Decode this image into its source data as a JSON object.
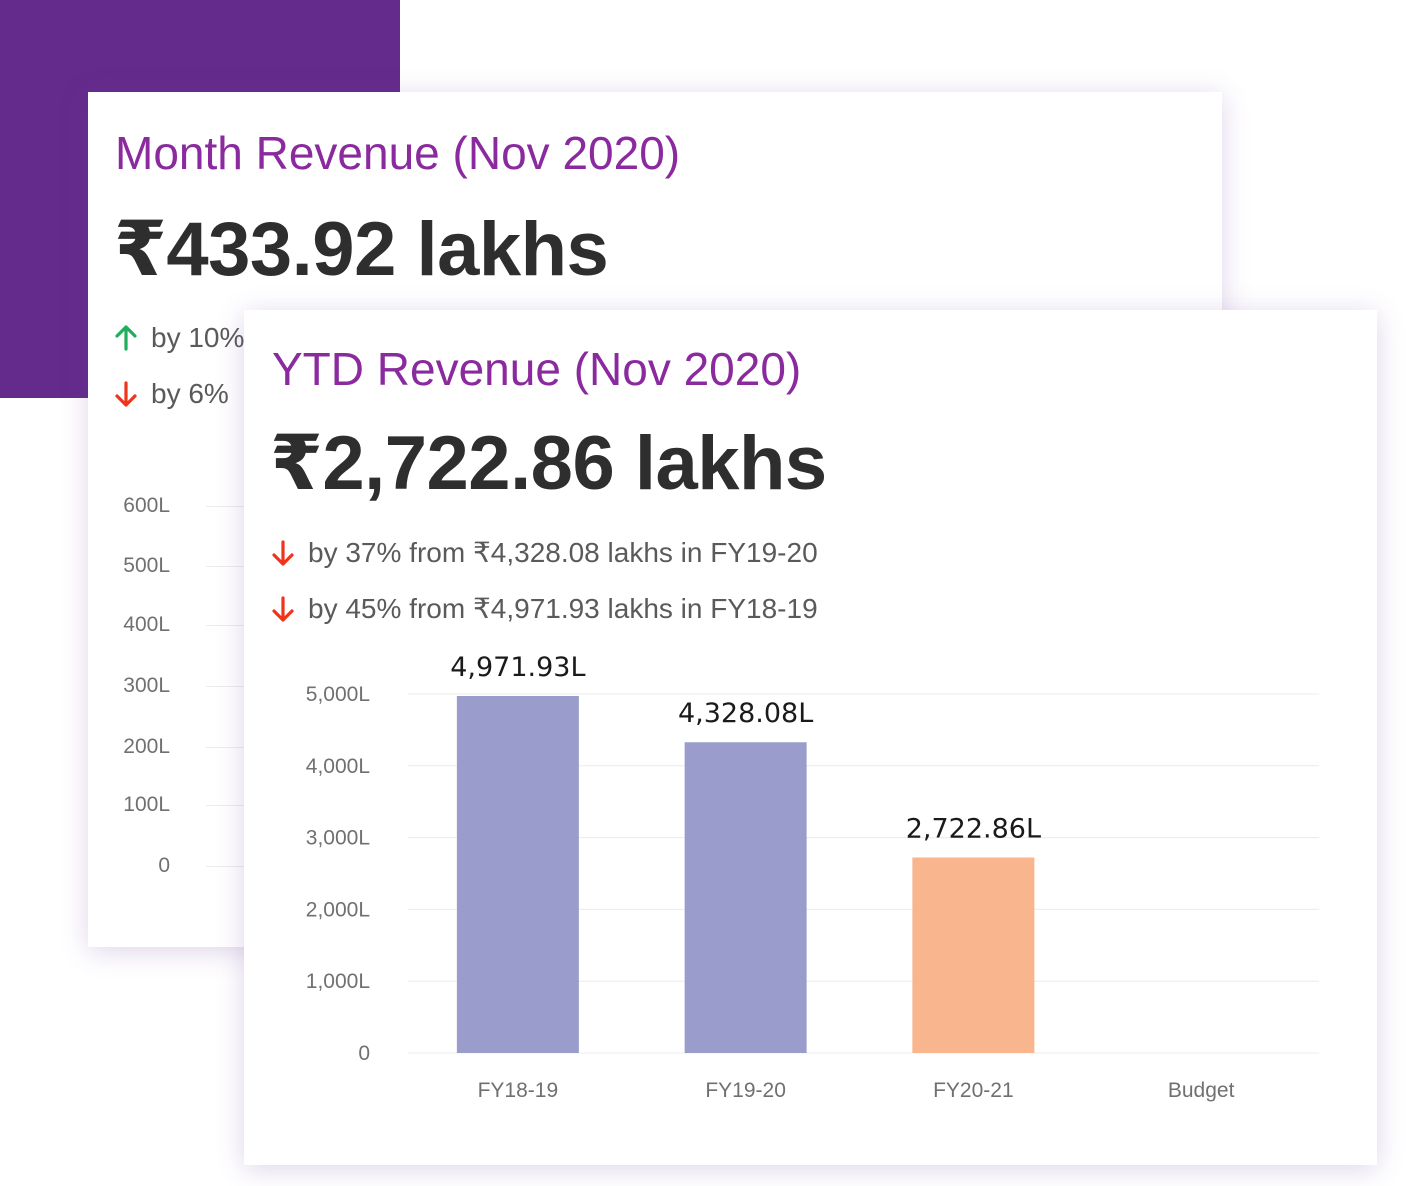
{
  "month_card": {
    "title": "Month Revenue (Nov 2020)",
    "amount": "₹433.92 lakhs",
    "changes": [
      {
        "direction": "up",
        "text": "by 10%"
      },
      {
        "direction": "down",
        "text": "by 6%"
      }
    ],
    "y_ticks": [
      "600L",
      "500L",
      "400L",
      "300L",
      "200L",
      "100L",
      "0"
    ]
  },
  "ytd_card": {
    "title": "YTD Revenue (Nov 2020)",
    "amount": "₹2,722.86 lakhs",
    "changes": [
      {
        "direction": "down",
        "text": "by 37% from ₹4,328.08 lakhs in FY19-20"
      },
      {
        "direction": "down",
        "text": "by 45% from ₹4,971.93 lakhs in FY18-19"
      }
    ]
  },
  "colors": {
    "accent_purple": "#8a2a9e",
    "brand_block": "#642b8c",
    "arrow_up": "#1fae5a",
    "arrow_down": "#f0341a",
    "bar_past": "#9a9dcb",
    "bar_current": "#f8b58e"
  },
  "chart_data": {
    "type": "bar",
    "categories": [
      "FY18-19",
      "FY19-20",
      "FY20-21",
      "Budget"
    ],
    "values": [
      4971.93,
      4328.08,
      2722.86,
      null
    ],
    "data_labels": [
      "4,971.93L",
      "4,328.08L",
      "2,722.86L",
      ""
    ],
    "bar_colors": [
      "#9a9dcb",
      "#9a9dcb",
      "#f8b58e",
      null
    ],
    "y_ticks": [
      {
        "value": 0,
        "label": "0"
      },
      {
        "value": 1000,
        "label": "1,000L"
      },
      {
        "value": 2000,
        "label": "2,000L"
      },
      {
        "value": 3000,
        "label": "3,000L"
      },
      {
        "value": 4000,
        "label": "4,000L"
      },
      {
        "value": 5000,
        "label": "5,000L"
      }
    ],
    "ylim": [
      0,
      5000
    ],
    "grid": true,
    "title": "",
    "xlabel": "",
    "ylabel": ""
  }
}
